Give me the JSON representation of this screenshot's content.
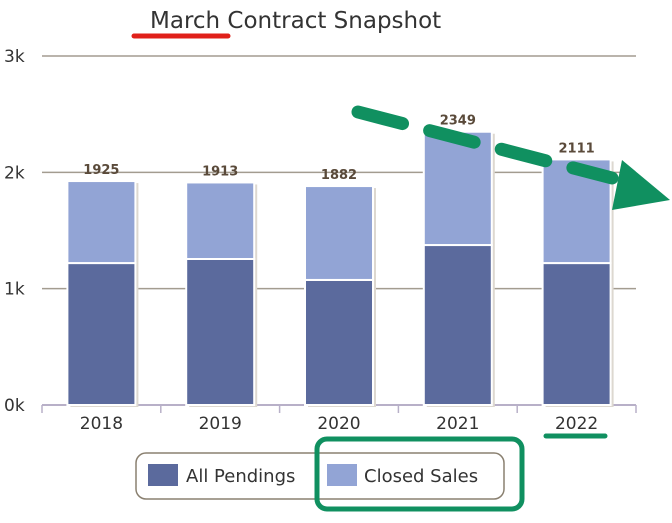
{
  "chart_data": {
    "type": "bar",
    "stacked": true,
    "title": "March Contract Snapshot",
    "xlabel": "",
    "ylabel": "",
    "categories": [
      "2018",
      "2019",
      "2020",
      "2021",
      "2022"
    ],
    "series": [
      {
        "name": "All Pendings",
        "values": [
          1220,
          1255,
          1075,
          1375,
          1220
        ],
        "color": "#5b6a9d"
      },
      {
        "name": "Closed Sales",
        "values": [
          705,
          658,
          807,
          974,
          891
        ],
        "color": "#92a4d5"
      }
    ],
    "totals": [
      1925,
      1913,
      1882,
      2349,
      2111
    ],
    "ylim": [
      0,
      3000
    ],
    "yticks": [
      "0k",
      "1k",
      "2k",
      "3k"
    ],
    "grid": true,
    "legend": "bottom-center",
    "annotation_color": "#109060",
    "highlight_color": "#e0201a"
  }
}
